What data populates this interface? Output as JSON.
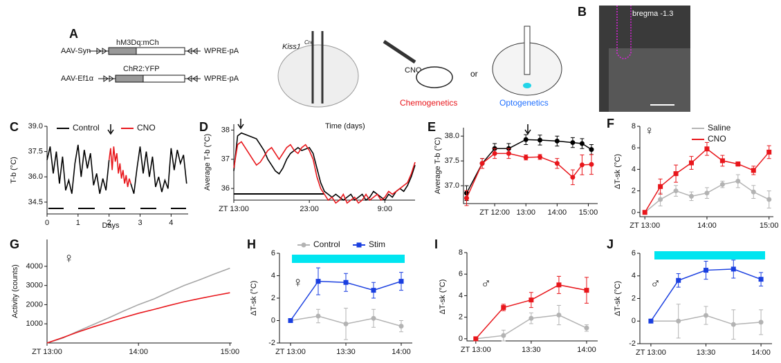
{
  "figure": {
    "panel_a": {
      "panel": "A",
      "construct1": "hM3Dq:mCh",
      "promoter1": "AAV-Syn",
      "tail1": "WPRE-pA",
      "construct2": "ChR2:YFP",
      "promoter2": "AAV-Ef1α",
      "tail2": "WPRE-pA",
      "mouse_line": "Kiss1",
      "mouse_line_sup": "Cre",
      "drug": "CNO",
      "or": "or",
      "method1": "Chemogenetics",
      "method2": "Optogenetics"
    },
    "panel_b": {
      "panel": "B",
      "section": "bregma -1.3"
    }
  },
  "chart_data": [
    {
      "type": "line",
      "panel": "C",
      "y_label": "T-b (°C)",
      "x_label": "Days",
      "xlim": [
        0,
        4.55
      ],
      "xticks": [
        0,
        1,
        2,
        3,
        4
      ],
      "ylim": [
        33.8,
        39.0
      ],
      "yticks": [
        {
          "value": 34.5,
          "label": "34.5"
        },
        {
          "value": 36,
          "label": "36.0"
        },
        {
          "value": 37.5,
          "label": "37.5"
        },
        {
          "value": 39,
          "label": "39.0"
        }
      ],
      "series": [
        {
          "name": "Control",
          "color": "#000000",
          "x": [
            0,
            0.1,
            0.2,
            0.3,
            0.4,
            0.5,
            0.6,
            0.7,
            0.8,
            0.9,
            1,
            1.1,
            1.2,
            1.3,
            1.4,
            1.5,
            1.6,
            1.7,
            1.8,
            1.9,
            2,
            2.1,
            2.2,
            2.3,
            2.4,
            2.5,
            2.6,
            2.7,
            2.8,
            2.9,
            3,
            3.1,
            3.2,
            3.3,
            3.4,
            3.5,
            3.6,
            3.7,
            3.8,
            3.9,
            4,
            4.1,
            4.2,
            4.3,
            4.4,
            4.5
          ],
          "values": [
            37.0,
            37.8,
            36.2,
            37.5,
            35.6,
            37.2,
            35.2,
            35.8,
            35.0,
            36.8,
            37.9,
            36.0,
            37.6,
            36.5,
            37.4,
            35.5,
            36.2,
            35.0,
            35.9,
            35.2,
            37.0,
            null,
            null,
            null,
            null,
            null,
            null,
            35.6,
            35.0,
            36.5,
            37.8,
            36.2,
            37.5,
            36.0,
            37.2,
            35.4,
            36.0,
            35.1,
            35.8,
            35.3,
            37.7,
            36.4,
            37.6,
            36.8,
            37.3,
            35.6
          ]
        },
        {
          "name": "CNO",
          "color": "#e8161b",
          "x": [
            2,
            2.05,
            2.1,
            2.15,
            2.2,
            2.25,
            2.3,
            2.35,
            2.4,
            2.45,
            2.5,
            2.55,
            2.6,
            2.65,
            2.7
          ],
          "values": [
            37.0,
            37.7,
            36.4,
            37.8,
            36.9,
            37.4,
            36.2,
            36.8,
            35.9,
            36.4,
            35.6,
            36.1,
            35.4,
            35.9,
            35.6
          ]
        }
      ]
    },
    {
      "type": "line",
      "panel": "D",
      "y_label": "Average T-b (°C)",
      "annotation": "Time (days)",
      "xlim": [
        13,
        37
      ],
      "xticks": [
        {
          "value": 13,
          "label": "ZT 13:00"
        },
        {
          "value": 23,
          "label": "23:00"
        },
        {
          "value": 33,
          "label": "9:00"
        }
      ],
      "ylim": [
        35.6,
        38.2
      ],
      "yticks": [
        36,
        37,
        38
      ],
      "x": [
        13,
        13.5,
        14,
        14.5,
        15,
        15.5,
        16,
        16.5,
        17,
        17.5,
        18,
        18.5,
        19,
        19.5,
        20,
        20.5,
        21,
        21.5,
        22,
        22.5,
        23,
        23.5,
        24,
        24.5,
        25,
        25.5,
        26,
        26.5,
        27,
        27.5,
        28,
        28.5,
        29,
        29.5,
        30,
        30.5,
        31,
        31.5,
        32,
        32.5,
        33,
        33.5,
        34,
        34.5,
        35,
        35.5,
        36,
        36.5,
        37
      ],
      "series": [
        {
          "color": "#000000",
          "values": [
            36.6,
            37.8,
            37.9,
            37.85,
            37.8,
            37.75,
            37.7,
            37.5,
            37.3,
            37.0,
            36.8,
            36.6,
            36.5,
            36.7,
            37.0,
            37.2,
            37.3,
            37.4,
            37.3,
            37.35,
            37.4,
            37.2,
            36.7,
            36.2,
            35.9,
            35.8,
            35.7,
            35.8,
            35.7,
            35.6,
            35.7,
            35.8,
            35.6,
            35.7,
            35.8,
            35.6,
            35.7,
            35.9,
            35.8,
            35.7,
            35.6,
            35.8,
            35.7,
            35.9,
            36.0,
            35.9,
            36.1,
            36.4,
            36.8
          ]
        },
        {
          "color": "#e8161b",
          "values": [
            36.7,
            37.5,
            37.6,
            37.4,
            37.2,
            37.0,
            36.8,
            36.9,
            37.1,
            37.3,
            37.4,
            37.2,
            37.0,
            37.2,
            37.4,
            37.5,
            37.3,
            37.2,
            37.4,
            37.5,
            37.3,
            37.0,
            36.4,
            36.0,
            35.8,
            35.6,
            35.7,
            35.5,
            35.6,
            35.8,
            35.5,
            35.6,
            35.7,
            35.5,
            35.6,
            35.8,
            35.6,
            35.7,
            35.8,
            35.6,
            35.7,
            35.9,
            35.8,
            35.9,
            36.0,
            36.1,
            36.2,
            36.5,
            36.9
          ]
        }
      ]
    },
    {
      "type": "line",
      "panel": "E",
      "y_label": "Average T-b (°C)",
      "xlim": [
        11,
        15.3
      ],
      "xticks": [
        {
          "value": 12,
          "label": "ZT 12:00"
        },
        {
          "value": 13,
          "label": "13:00"
        },
        {
          "value": 14,
          "label": "14:00"
        },
        {
          "value": 15,
          "label": "15:00"
        }
      ],
      "ylim": [
        36.64,
        38.17
      ],
      "yticks": [
        {
          "value": 37,
          "label": "37.0"
        },
        {
          "value": 37.5,
          "label": "37.5"
        },
        {
          "value": 38,
          "label": "38.0"
        }
      ],
      "x": [
        11.1,
        11.6,
        12.0,
        12.45,
        13.0,
        13.45,
        14.0,
        14.5,
        14.8,
        15.1
      ],
      "series": [
        {
          "color": "#000000",
          "marker": "circle",
          "values": [
            36.85,
            37.45,
            37.75,
            37.75,
            37.93,
            37.92,
            37.9,
            37.87,
            37.85,
            37.73
          ],
          "errors": [
            0.15,
            0.1,
            0.1,
            0.1,
            0.1,
            0.1,
            0.1,
            0.1,
            0.1,
            0.1
          ]
        },
        {
          "color": "#e8161b",
          "marker": "circle",
          "values": [
            36.75,
            37.45,
            37.65,
            37.65,
            37.57,
            37.58,
            37.45,
            37.17,
            37.42,
            37.43
          ],
          "errors": [
            0.15,
            0.1,
            0.1,
            0.1,
            0.05,
            0.05,
            0.1,
            0.15,
            0.2,
            0.2
          ]
        }
      ]
    },
    {
      "type": "line",
      "panel": "F",
      "y_label": "ΔT-sk (°C)",
      "annotation": "♀",
      "xlim": [
        12.92,
        15.07
      ],
      "xticks": [
        {
          "value": 13,
          "label": "ZT 13:00"
        },
        {
          "value": 14,
          "label": "14:00"
        },
        {
          "value": 15,
          "label": "15:00"
        }
      ],
      "ylim": [
        -0.4,
        8
      ],
      "yticks": [
        0,
        2,
        4,
        6,
        8
      ],
      "x": [
        13,
        13.25,
        13.5,
        13.75,
        14,
        14.25,
        14.5,
        14.75,
        15
      ],
      "series": [
        {
          "name": "Saline",
          "color": "#b3b3b3",
          "marker": "circle",
          "values": [
            0,
            1.2,
            2.0,
            1.5,
            1.8,
            2.6,
            2.9,
            1.9,
            1.2
          ],
          "errors": [
            0,
            0.6,
            0.5,
            0.4,
            0.5,
            0.3,
            0.6,
            0.6,
            0.8
          ]
        },
        {
          "name": "CNO",
          "color": "#e8161b",
          "marker": "square",
          "values": [
            0,
            2.4,
            3.6,
            4.6,
            5.9,
            4.8,
            4.5,
            3.9,
            5.6
          ],
          "errors": [
            0,
            0.7,
            0.8,
            0.6,
            0.6,
            0.5,
            0.2,
            0.4,
            0.6
          ]
        }
      ]
    },
    {
      "type": "line",
      "panel": "G",
      "y_label": "Activity (counts)",
      "annotation": "♀",
      "xlim": [
        13,
        15.02
      ],
      "xticks": [
        {
          "value": 13,
          "label": "ZT 13:00"
        },
        {
          "value": 14,
          "label": "14:00"
        },
        {
          "value": 15,
          "label": "15:00"
        }
      ],
      "ylim": [
        0,
        5400
      ],
      "yticks": [
        1000,
        2000,
        3000,
        4000
      ],
      "x": [
        13,
        13.17,
        13.33,
        13.5,
        13.67,
        13.83,
        14,
        14.17,
        14.33,
        14.5,
        14.67,
        14.83,
        15
      ],
      "series": [
        {
          "color": "#a6a6a6",
          "values": [
            0,
            250,
            600,
            950,
            1300,
            1650,
            2000,
            2300,
            2650,
            3000,
            3300,
            3600,
            3900
          ]
        },
        {
          "color": "#e8161b",
          "values": [
            0,
            280,
            560,
            830,
            1080,
            1320,
            1550,
            1750,
            1950,
            2150,
            2320,
            2470,
            2620
          ]
        }
      ]
    },
    {
      "type": "line",
      "panel": "H",
      "y_label": "ΔT-sk (°C)",
      "annotation": "♀",
      "xlim": [
        12.9,
        14.1
      ],
      "xticks": [
        {
          "value": 13,
          "label": "ZT 13:00"
        },
        {
          "value": 13.5,
          "label": "13:30"
        },
        {
          "value": 14,
          "label": "14:00"
        }
      ],
      "ylim": [
        -2,
        6
      ],
      "yticks": [
        -2,
        0,
        2,
        4,
        6
      ],
      "x": [
        13,
        13.25,
        13.5,
        13.75,
        14
      ],
      "series": [
        {
          "name": "Control",
          "color": "#b3b3b3",
          "marker": "circle",
          "values": [
            0,
            0.4,
            -0.3,
            0.2,
            -0.5
          ],
          "errors": [
            0,
            0.6,
            1.4,
            0.8,
            0.5
          ]
        },
        {
          "name": "Stim",
          "color": "#1a3fe0",
          "marker": "square",
          "values": [
            0,
            3.5,
            3.4,
            2.7,
            3.5
          ],
          "errors": [
            0,
            1.2,
            0.8,
            0.7,
            0.8
          ]
        }
      ]
    },
    {
      "type": "line",
      "panel": "I",
      "y_label": "ΔT-sk (°C)",
      "annotation": "♂",
      "xlim": [
        12.92,
        14.1
      ],
      "xticks": [
        {
          "value": 13,
          "label": "ZT 13:00"
        },
        {
          "value": 13.5,
          "label": "13:30"
        },
        {
          "value": 14,
          "label": "14:00"
        }
      ],
      "ylim": [
        -0.2,
        8
      ],
      "yticks": [
        0,
        2,
        4,
        6,
        8
      ],
      "x": [
        13,
        13.25,
        13.5,
        13.75,
        14
      ],
      "series": [
        {
          "color": "#b3b3b3",
          "marker": "circle",
          "values": [
            0,
            0.3,
            1.9,
            2.2,
            1.0
          ],
          "errors": [
            0,
            0.5,
            0.5,
            0.9,
            0.3
          ]
        },
        {
          "color": "#e8161b",
          "marker": "square",
          "values": [
            0,
            2.9,
            3.6,
            5.0,
            4.5
          ],
          "errors": [
            0,
            0.3,
            0.7,
            0.8,
            1.2
          ]
        }
      ]
    },
    {
      "type": "line",
      "panel": "J",
      "y_label": "ΔT-sk (°C)",
      "annotation": "♂",
      "xlim": [
        12.9,
        14.1
      ],
      "xticks": [
        {
          "value": 13,
          "label": "ZT 13:00"
        },
        {
          "value": 13.5,
          "label": "13:30"
        },
        {
          "value": 14,
          "label": "14:00"
        }
      ],
      "ylim": [
        -2,
        6
      ],
      "yticks": [
        -2,
        0,
        2,
        4,
        6
      ],
      "x": [
        13,
        13.25,
        13.5,
        13.75,
        14
      ],
      "series": [
        {
          "color": "#b3b3b3",
          "marker": "circle",
          "values": [
            0,
            0,
            0.5,
            -0.3,
            -0.1
          ],
          "errors": [
            0,
            1.5,
            0.8,
            1.3,
            1.1
          ]
        },
        {
          "color": "#1a3fe0",
          "marker": "square",
          "values": [
            0,
            3.6,
            4.5,
            4.6,
            3.7
          ],
          "errors": [
            0,
            0.6,
            0.8,
            0.8,
            0.6
          ]
        }
      ]
    }
  ]
}
